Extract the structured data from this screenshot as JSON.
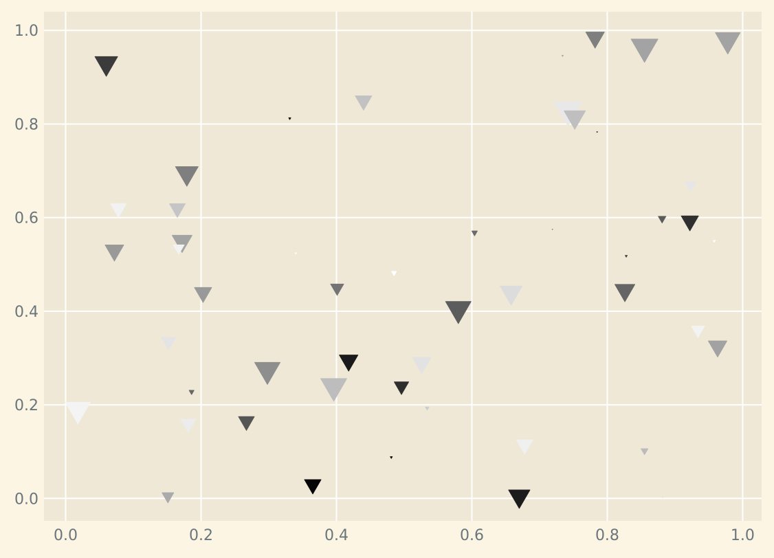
{
  "chart_data": {
    "type": "scatter",
    "marker": "triangle-down",
    "title": "",
    "xlabel": "",
    "ylabel": "",
    "xlim": [
      -0.032,
      1.028
    ],
    "ylim": [
      -0.048,
      1.04
    ],
    "grid": true,
    "legend": "none",
    "x_ticks": [
      {
        "value": 0.0,
        "label": "0.0"
      },
      {
        "value": 0.2,
        "label": "0.2"
      },
      {
        "value": 0.4,
        "label": "0.4"
      },
      {
        "value": 0.6,
        "label": "0.6"
      },
      {
        "value": 0.8,
        "label": "0.8"
      },
      {
        "value": 1.0,
        "label": "1.0"
      }
    ],
    "y_ticks": [
      {
        "value": 0.0,
        "label": "0.0"
      },
      {
        "value": 0.2,
        "label": "0.2"
      },
      {
        "value": 0.4,
        "label": "0.4"
      },
      {
        "value": 0.6,
        "label": "0.6"
      },
      {
        "value": 0.8,
        "label": "0.8"
      },
      {
        "value": 1.0,
        "label": "1.0"
      }
    ],
    "colors": {
      "figure_background": "#fcf5e3",
      "plot_background": "#efe8d6",
      "grid": "#ffffff",
      "tick_label": "#6a767c"
    },
    "points": [
      {
        "x": 0.06,
        "y": 0.93,
        "size": 33,
        "color": "#3b3b3b"
      },
      {
        "x": 0.018,
        "y": 0.19,
        "size": 36,
        "color": "#f4f4f4"
      },
      {
        "x": 0.078,
        "y": 0.62,
        "size": 23,
        "color": "#f2f2f2"
      },
      {
        "x": 0.072,
        "y": 0.53,
        "size": 27,
        "color": "#999999"
      },
      {
        "x": 0.179,
        "y": 0.695,
        "size": 33,
        "color": "#7f7f7f"
      },
      {
        "x": 0.165,
        "y": 0.62,
        "size": 23,
        "color": "#c5c5c5"
      },
      {
        "x": 0.172,
        "y": 0.55,
        "size": 29,
        "color": "#a3a3a3"
      },
      {
        "x": 0.167,
        "y": 0.535,
        "size": 16,
        "color": "#f2f2f2"
      },
      {
        "x": 0.203,
        "y": 0.44,
        "size": 25,
        "color": "#999999"
      },
      {
        "x": 0.152,
        "y": 0.335,
        "size": 21,
        "color": "#e4e4e4"
      },
      {
        "x": 0.186,
        "y": 0.228,
        "size": 7,
        "color": "#666666"
      },
      {
        "x": 0.181,
        "y": 0.16,
        "size": 22,
        "color": "#ececec"
      },
      {
        "x": 0.151,
        "y": 0.005,
        "size": 17,
        "color": "#aaaaaa"
      },
      {
        "x": 0.298,
        "y": 0.275,
        "size": 37,
        "color": "#8e8e8e"
      },
      {
        "x": 0.267,
        "y": 0.165,
        "size": 23,
        "color": "#555555"
      },
      {
        "x": 0.331,
        "y": 0.812,
        "size": 3,
        "color": "#111111"
      },
      {
        "x": 0.34,
        "y": 0.524,
        "size": 2,
        "color": "#ffffff"
      },
      {
        "x": 0.44,
        "y": 0.85,
        "size": 24,
        "color": "#c2c2c2"
      },
      {
        "x": 0.401,
        "y": 0.45,
        "size": 19,
        "color": "#747474"
      },
      {
        "x": 0.418,
        "y": 0.295,
        "size": 27,
        "color": "#1a1a1a"
      },
      {
        "x": 0.396,
        "y": 0.24,
        "size": 38,
        "color": "#bdbdbd"
      },
      {
        "x": 0.365,
        "y": 0.03,
        "size": 24,
        "color": "#050505"
      },
      {
        "x": 0.485,
        "y": 0.482,
        "size": 7,
        "color": "#ffffff"
      },
      {
        "x": 0.496,
        "y": 0.24,
        "size": 21,
        "color": "#2e2e2e"
      },
      {
        "x": 0.526,
        "y": 0.29,
        "size": 27,
        "color": "#e2e2e2"
      },
      {
        "x": 0.534,
        "y": 0.193,
        "size": 5,
        "color": "#cccccc"
      },
      {
        "x": 0.481,
        "y": 0.088,
        "size": 3,
        "color": "#111111"
      },
      {
        "x": 0.58,
        "y": 0.405,
        "size": 37,
        "color": "#5c5c5c"
      },
      {
        "x": 0.604,
        "y": 0.568,
        "size": 8,
        "color": "#6a6a6a"
      },
      {
        "x": 0.658,
        "y": 0.44,
        "size": 32,
        "color": "#dcdcdc"
      },
      {
        "x": 0.678,
        "y": 0.115,
        "size": 24,
        "color": "#f0f0f0"
      },
      {
        "x": 0.67,
        "y": 0.005,
        "size": 31,
        "color": "#1c1c1c"
      },
      {
        "x": 0.734,
        "y": 0.946,
        "size": 2,
        "color": "#aaaaaa"
      },
      {
        "x": 0.719,
        "y": 0.575,
        "size": 1,
        "color": "#888888"
      },
      {
        "x": 0.742,
        "y": 0.83,
        "size": 40,
        "color": "#e8e8e8"
      },
      {
        "x": 0.752,
        "y": 0.815,
        "size": 31,
        "color": "#bfbfbf"
      },
      {
        "x": 0.785,
        "y": 0.783,
        "size": 1,
        "color": "#111111"
      },
      {
        "x": 0.782,
        "y": 0.985,
        "size": 27,
        "color": "#7f7f7f"
      },
      {
        "x": 0.855,
        "y": 0.965,
        "size": 39,
        "color": "#a3a3a3"
      },
      {
        "x": 0.828,
        "y": 0.518,
        "size": 3,
        "color": "#444444"
      },
      {
        "x": 0.826,
        "y": 0.445,
        "size": 29,
        "color": "#656565"
      },
      {
        "x": 0.881,
        "y": 0.598,
        "size": 11,
        "color": "#5b5b5b"
      },
      {
        "x": 0.922,
        "y": 0.593,
        "size": 25,
        "color": "#2f2f2f"
      },
      {
        "x": 0.923,
        "y": 0.67,
        "size": 16,
        "color": "#e6e6e6"
      },
      {
        "x": 0.958,
        "y": 0.55,
        "size": 3,
        "color": "#ffffff"
      },
      {
        "x": 0.934,
        "y": 0.36,
        "size": 19,
        "color": "#f3f3f3"
      },
      {
        "x": 0.963,
        "y": 0.325,
        "size": 27,
        "color": "#a2a2a2"
      },
      {
        "x": 0.978,
        "y": 0.98,
        "size": 36,
        "color": "#a3a3a3"
      },
      {
        "x": 0.855,
        "y": 0.102,
        "size": 10,
        "color": "#bbbbbb"
      },
      {
        "x": 0.882,
        "y": 0.003,
        "size": 2,
        "color": "#e3e3e3"
      }
    ]
  }
}
